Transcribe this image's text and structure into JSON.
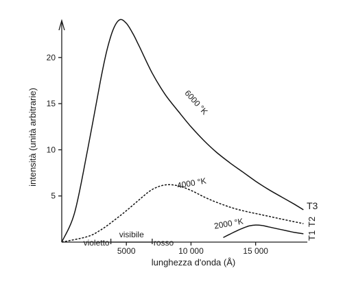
{
  "chart_data": {
    "type": "line",
    "title": "",
    "xlabel": "lunghezza d'onda (Å)",
    "ylabel": "intensità (unità arbitrarie)",
    "xlim": [
      0,
      19000
    ],
    "ylim": [
      0,
      24
    ],
    "x_ticks": [
      {
        "value": 5000,
        "label": "5000"
      },
      {
        "value": 10000,
        "label": "10 000"
      },
      {
        "value": 15000,
        "label": "15 000"
      }
    ],
    "y_ticks": [
      {
        "value": 5,
        "label": "5"
      },
      {
        "value": 10,
        "label": "10"
      },
      {
        "value": 15,
        "label": "15"
      },
      {
        "value": 20,
        "label": "20"
      }
    ],
    "visible_band": {
      "label": "visibile",
      "from": 3800,
      "to": 7000,
      "left_label": "violetto",
      "right_label": "rosso"
    },
    "series": [
      {
        "name": "6000 °K",
        "style": "solid",
        "x": [
          0,
          1000,
          2000,
          3000,
          3500,
          4000,
          4500,
          5000,
          5500,
          6000,
          7000,
          8000,
          9000,
          10000,
          11000,
          12000,
          13000,
          14000,
          15000,
          16000,
          17000,
          18000,
          18700
        ],
        "y": [
          0,
          3.2,
          10,
          17.5,
          20.8,
          23.1,
          24.1,
          23.7,
          22.6,
          21.2,
          18.3,
          16.0,
          14.2,
          12.5,
          11.0,
          9.7,
          8.6,
          7.6,
          6.6,
          5.7,
          4.9,
          4.1,
          3.5
        ]
      },
      {
        "name": "4000 °K",
        "style": "dashed",
        "x": [
          0,
          2000,
          3000,
          4000,
          5000,
          6000,
          7000,
          8000,
          9000,
          10000,
          11000,
          12000,
          13000,
          14000,
          15000,
          16000,
          17000,
          18000,
          18700
        ],
        "y": [
          0,
          0.6,
          1.3,
          2.3,
          3.4,
          4.6,
          5.7,
          6.2,
          6.1,
          5.6,
          4.9,
          4.3,
          3.8,
          3.4,
          3.1,
          2.8,
          2.5,
          2.2,
          2.0
        ]
      },
      {
        "name": "2000 °K",
        "style": "solid",
        "x": [
          12500,
          13000,
          13500,
          14000,
          14500,
          15000,
          15500,
          16000,
          16500,
          17000,
          17500,
          18000,
          18700
        ],
        "y": [
          0.5,
          0.85,
          1.2,
          1.5,
          1.75,
          1.85,
          1.8,
          1.65,
          1.5,
          1.35,
          1.2,
          1.05,
          0.9
        ]
      }
    ],
    "annotations": [
      "T3",
      "T2",
      "T1"
    ]
  }
}
